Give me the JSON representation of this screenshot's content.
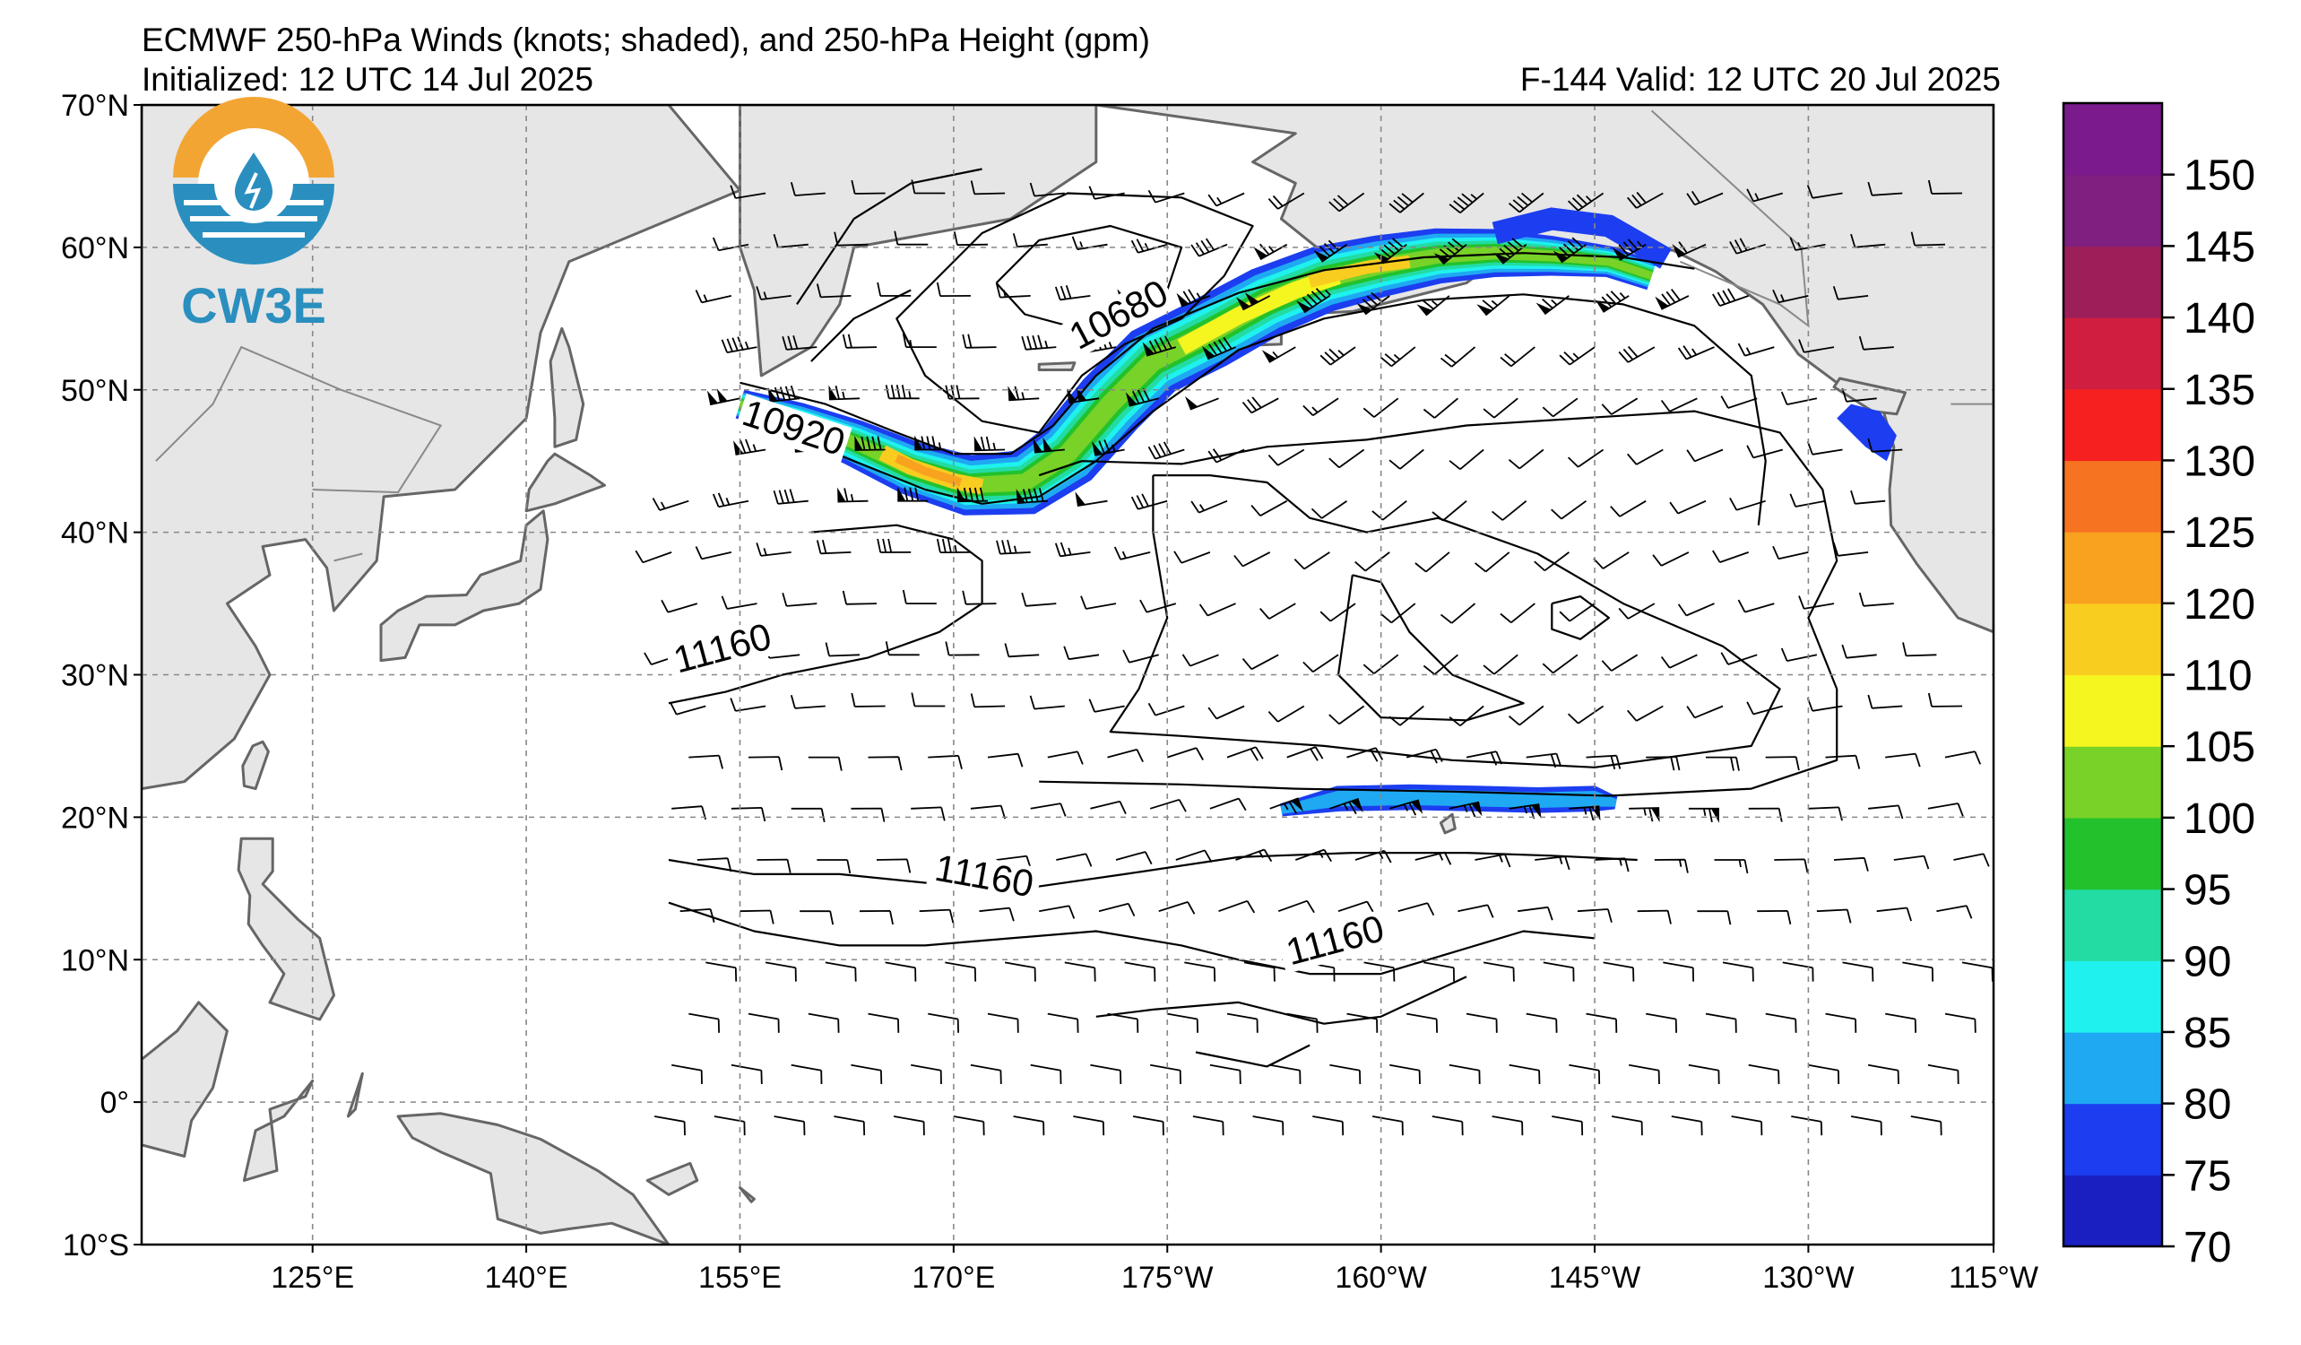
{
  "header": {
    "title": "ECMWF 250-hPa Winds (knots; shaded), and 250-hPa Height (gpm)",
    "initialized": "Initialized: 12 UTC 14 Jul 2025",
    "valid": "F-144  Valid: 12 UTC 20 Jul 2025"
  },
  "logo": {
    "text": "CW3E",
    "colors": {
      "sun": "#f3a534",
      "ocean": "#2a8fbf",
      "drop": "#2a8fbf"
    }
  },
  "map": {
    "lon_range": [
      113,
      243
    ],
    "lat_range": [
      -10,
      70
    ],
    "land_color": "#e6e6e6",
    "coast_color": "#666666",
    "grid": true,
    "lat_labels": [
      "70°N",
      "60°N",
      "50°N",
      "40°N",
      "30°N",
      "20°N",
      "10°N",
      "0°",
      "10°S"
    ],
    "lon_labels": [
      "125°E",
      "140°E",
      "155°E",
      "170°E",
      "175°W",
      "160°W",
      "145°W",
      "130°W",
      "115°W"
    ],
    "contour_labels": [
      {
        "text": "10920",
        "lon": 158.5,
        "lat": 46.5
      },
      {
        "text": "10680",
        "lon": 182,
        "lat": 54.5
      },
      {
        "text": "11160",
        "lon": 154,
        "lat": 31
      },
      {
        "text": "11160",
        "lon": 172,
        "lat": 15
      },
      {
        "text": "11160",
        "lon": 197,
        "lat": 10.5
      }
    ]
  },
  "colorbar": {
    "ticks": [
      "150",
      "145",
      "140",
      "135",
      "130",
      "125",
      "120",
      "110",
      "105",
      "100",
      "95",
      "90",
      "85",
      "80",
      "75",
      "70"
    ],
    "colors": [
      "#1a1fc2",
      "#1c3ef0",
      "#1fa9f2",
      "#1ff2ee",
      "#22dca4",
      "#22c22c",
      "#78d228",
      "#f5f51f",
      "#f9cd1f",
      "#f8a21f",
      "#f67322",
      "#f5201f",
      "#cf1e3f",
      "#9d1f5a",
      "#7f1f7f",
      "#7a1a8d"
    ]
  }
}
